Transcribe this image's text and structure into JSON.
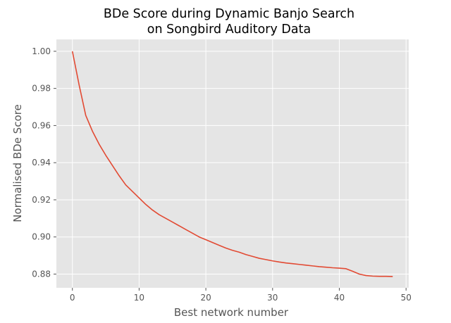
{
  "chart_data": {
    "type": "line",
    "title_lines": [
      "BDe Score during Dynamic Banjo Search",
      "on Songbird Auditory Data"
    ],
    "xlabel": "Best network number",
    "ylabel": "Normalised BDe Score",
    "xlim": [
      -2.4,
      50.4
    ],
    "ylim": [
      0.8726,
      1.0064
    ],
    "xticks": [
      0,
      10,
      20,
      30,
      40,
      50
    ],
    "xtick_labels": [
      "0",
      "10",
      "20",
      "30",
      "40",
      "50"
    ],
    "yticks": [
      0.88,
      0.9,
      0.92,
      0.94,
      0.96,
      0.98,
      1.0
    ],
    "ytick_labels": [
      "0.88",
      "0.90",
      "0.92",
      "0.94",
      "0.96",
      "0.98",
      "1.00"
    ],
    "grid": true,
    "style": {
      "background": "#e5e5e5",
      "grid_color": "#ffffff",
      "line_color": "#e24a33",
      "tick_color": "#555555"
    },
    "series": [
      {
        "x": [
          0,
          1,
          2,
          3,
          4,
          5,
          6,
          7,
          8,
          9,
          10,
          11,
          12,
          13,
          14,
          15,
          16,
          17,
          18,
          19,
          20,
          21,
          22,
          23,
          24,
          25,
          26,
          27,
          28,
          29,
          30,
          31,
          32,
          33,
          34,
          35,
          36,
          37,
          38,
          39,
          40,
          41,
          42,
          43,
          44,
          45,
          46,
          47,
          48
        ],
        "values": [
          1.0,
          0.982,
          0.9655,
          0.957,
          0.95,
          0.944,
          0.9385,
          0.933,
          0.928,
          0.9245,
          0.921,
          0.9175,
          0.9145,
          0.912,
          0.91,
          0.908,
          0.906,
          0.904,
          0.902,
          0.9,
          0.8985,
          0.897,
          0.8955,
          0.894,
          0.8928,
          0.8918,
          0.8905,
          0.8895,
          0.8885,
          0.8878,
          0.8871,
          0.8865,
          0.886,
          0.8856,
          0.8852,
          0.8848,
          0.8844,
          0.884,
          0.8837,
          0.8834,
          0.8832,
          0.8829,
          0.8815,
          0.88,
          0.8792,
          0.8789,
          0.8788,
          0.8788,
          0.8787
        ]
      }
    ]
  }
}
